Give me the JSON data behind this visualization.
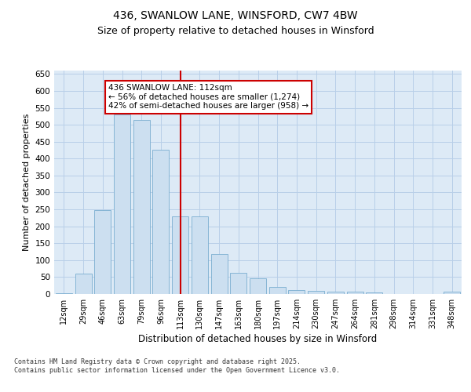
{
  "title1": "436, SWANLOW LANE, WINSFORD, CW7 4BW",
  "title2": "Size of property relative to detached houses in Winsford",
  "xlabel": "Distribution of detached houses by size in Winsford",
  "ylabel": "Number of detached properties",
  "categories": [
    "12sqm",
    "29sqm",
    "46sqm",
    "63sqm",
    "79sqm",
    "96sqm",
    "113sqm",
    "130sqm",
    "147sqm",
    "163sqm",
    "180sqm",
    "197sqm",
    "214sqm",
    "230sqm",
    "247sqm",
    "264sqm",
    "281sqm",
    "298sqm",
    "314sqm",
    "331sqm",
    "348sqm"
  ],
  "values": [
    2,
    60,
    248,
    530,
    513,
    425,
    230,
    230,
    118,
    63,
    46,
    20,
    12,
    10,
    7,
    6,
    5,
    1,
    1,
    1,
    6
  ],
  "bar_color": "#ccdff0",
  "bar_edge_color": "#7aaed0",
  "vline_x": 6,
  "vline_color": "#cc0000",
  "annotation_text": "436 SWANLOW LANE: 112sqm\n← 56% of detached houses are smaller (1,274)\n42% of semi-detached houses are larger (958) →",
  "annotation_box_color": "#ffffff",
  "annotation_box_edge_color": "#cc0000",
  "grid_color": "#b8cfe8",
  "bg_color": "#ddeaf6",
  "footer_text": "Contains HM Land Registry data © Crown copyright and database right 2025.\nContains public sector information licensed under the Open Government Licence v3.0.",
  "ylim": [
    0,
    660
  ],
  "yticks": [
    0,
    50,
    100,
    150,
    200,
    250,
    300,
    350,
    400,
    450,
    500,
    550,
    600,
    650
  ]
}
